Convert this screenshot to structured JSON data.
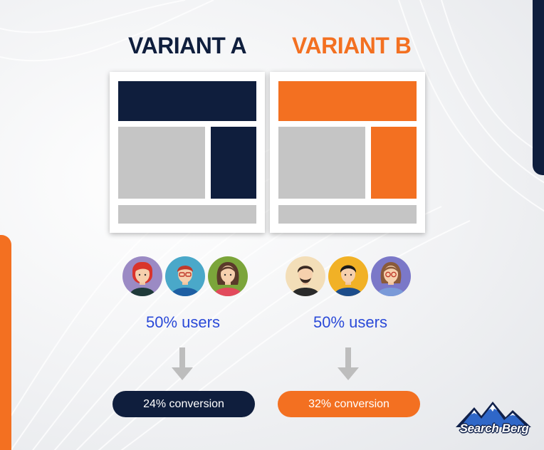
{
  "colors": {
    "navy": "#0f1e3d",
    "orange": "#f37021",
    "block_gray": "#c5c5c5",
    "users_text": "#2b4ad8",
    "arrow_gray": "#bdbdbd"
  },
  "variant_a": {
    "title": "VARIANT A",
    "users_label": "50% users",
    "conversion_label": "24% conversion",
    "avatars": [
      "woman-red-hair-icon",
      "man-glasses-icon",
      "woman-brown-hair-icon"
    ]
  },
  "variant_b": {
    "title": "VARIANT B",
    "users_label": "50% users",
    "conversion_label": "32% conversion",
    "avatars": [
      "man-beard-icon",
      "man-dark-hair-icon",
      "woman-glasses-icon"
    ]
  },
  "logo": {
    "text": "Search Berg",
    "icon": "mountain-icon"
  }
}
